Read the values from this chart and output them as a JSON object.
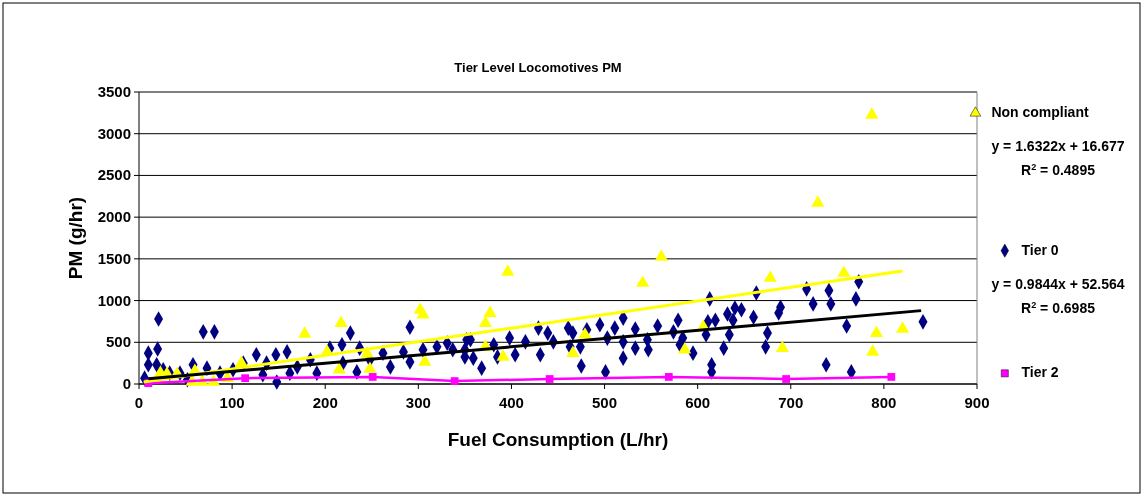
{
  "chart_data": {
    "type": "scatter",
    "title": "Tier Level  Locomotives PM",
    "xlabel": "Fuel Consumption (L/hr)",
    "ylabel": "PM (g/hr)",
    "xlim": [
      0,
      900
    ],
    "xticks": [
      0,
      100,
      200,
      300,
      400,
      500,
      600,
      700,
      800,
      900
    ],
    "ylim": [
      0,
      3500
    ],
    "yticks": [
      0,
      500,
      1000,
      1500,
      2000,
      2500,
      3000,
      3500
    ],
    "grid": "y",
    "legend": "right",
    "annotations": [
      "y = 1.6322x + 16.677\nR$^{2}$ = 0.4895",
      "y = 0.9844x + 52.564\nR$^{2}$ = 0.6985"
    ],
    "series": [
      {
        "name": "Tier 0",
        "color": "#000080",
        "marker": "diamond",
        "x": [
          21,
          69,
          81,
          10,
          20,
          10,
          19,
          26,
          6,
          33,
          44,
          58,
          73,
          87,
          52,
          101,
          112,
          126,
          137,
          147,
          159,
          148,
          133,
          162,
          170,
          184,
          191,
          205,
          218,
          227,
          237,
          219,
          234,
          248,
          262,
          270,
          291,
          284,
          291,
          305,
          320,
          331,
          337,
          352,
          350,
          356,
          350,
          359,
          368,
          381,
          385,
          398,
          404,
          415,
          429,
          431,
          439,
          445,
          461,
          466,
          463,
          474,
          475,
          481,
          495,
          503,
          511,
          520,
          520,
          520,
          501,
          533,
          533,
          547,
          546,
          557,
          574,
          579,
          584,
          581,
          595,
          609,
          611,
          613,
          619,
          615,
          615,
          628,
          634,
          632,
          640,
          647,
          638,
          660,
          663,
          675,
          673,
          687,
          689,
          717,
          724,
          738,
          741,
          743,
          760,
          765,
          770,
          773,
          842
        ],
        "values": [
          780,
          625,
          625,
          370,
          420,
          230,
          230,
          170,
          70,
          130,
          130,
          230,
          190,
          130,
          50,
          170,
          250,
          350,
          250,
          350,
          385,
          25,
          110,
          130,
          205,
          290,
          130,
          430,
          470,
          610,
          430,
          250,
          145,
          290,
          370,
          205,
          680,
          385,
          265,
          410,
          445,
          490,
          410,
          530,
          325,
          530,
          410,
          310,
          190,
          470,
          325,
          550,
          350,
          505,
          670,
          350,
          610,
          505,
          670,
          610,
          445,
          445,
          215,
          650,
          710,
          550,
          670,
          505,
          790,
          310,
          145,
          660,
          430,
          410,
          530,
          695,
          625,
          765,
          550,
          470,
          370,
          590,
          745,
          1020,
          765,
          230,
          145,
          430,
          590,
          840,
          910,
          890,
          765,
          800,
          1090,
          610,
          445,
          850,
          920,
          1140,
          960,
          230,
          1120,
          960,
          695,
          145,
          1020,
          1225,
          745
        ]
      },
      {
        "name": "Non compliant",
        "color": "#ffff00",
        "marker": "triangle",
        "x": [
          23,
          30,
          41,
          57,
          60,
          68,
          80,
          95,
          110,
          178,
          202,
          215,
          217,
          245,
          248,
          302,
          305,
          307,
          372,
          372,
          377,
          391,
          396,
          466,
          479,
          541,
          561,
          586,
          606,
          678,
          691,
          729,
          757,
          787,
          788,
          792,
          820
        ],
        "values": [
          130,
          120,
          120,
          25,
          155,
          25,
          25,
          70,
          250,
          600,
          385,
          170,
          730,
          360,
          180,
          887,
          830,
          265,
          730,
          445,
          850,
          325,
          1343,
          370,
          590,
          1210,
          1523,
          410,
          685,
          1270,
          430,
          2170,
          1330,
          3225,
          385,
          610,
          660
        ]
      },
      {
        "name": "Tier 2",
        "type": "line",
        "color": "#ff00ff",
        "marker": "square",
        "x": [
          10,
          114,
          251,
          339,
          441,
          569,
          695,
          808
        ],
        "values": [
          10,
          70,
          85,
          35,
          60,
          85,
          60,
          85
        ]
      },
      {
        "type": "line",
        "color": "#ffff00",
        "marker": "none",
        "x": [
          5,
          820
        ],
        "values": [
          24.8,
          1355
        ]
      },
      {
        "type": "line",
        "color": "#000000",
        "marker": "none",
        "x": [
          10,
          840
        ],
        "values": [
          62.4,
          879.5
        ]
      }
    ]
  }
}
